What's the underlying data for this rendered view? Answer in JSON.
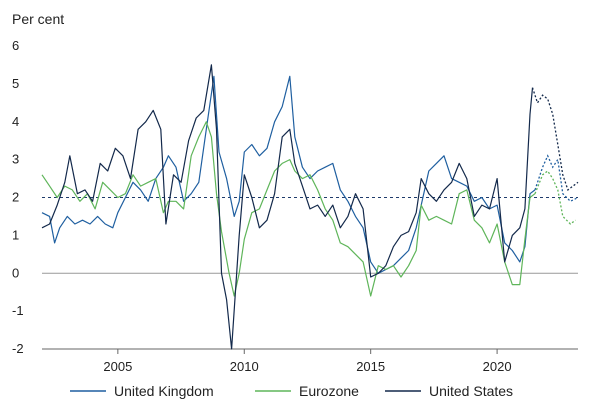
{
  "chart_data": {
    "type": "line",
    "unit_label": "Per cent",
    "xlim": [
      2002.0,
      2023.2
    ],
    "ylim": [
      -2,
      6
    ],
    "x_ticks": [
      2005,
      2010,
      2015,
      2020
    ],
    "y_ticks": [
      -2,
      -1,
      0,
      1,
      2,
      3,
      4,
      5,
      6
    ],
    "reference_line": {
      "y": 2,
      "style": "dashed",
      "color": "#1f3b6b"
    },
    "zero_line": {
      "y": 0,
      "color": "#999999"
    },
    "legend_position": "bottom",
    "series": [
      {
        "name": "United Kingdom",
        "color": "#1f5fa0",
        "points": [
          [
            2002.0,
            1.6
          ],
          [
            2002.3,
            1.5
          ],
          [
            2002.5,
            0.8
          ],
          [
            2002.7,
            1.2
          ],
          [
            2003.0,
            1.5
          ],
          [
            2003.3,
            1.3
          ],
          [
            2003.6,
            1.4
          ],
          [
            2003.9,
            1.3
          ],
          [
            2004.2,
            1.5
          ],
          [
            2004.5,
            1.3
          ],
          [
            2004.8,
            1.2
          ],
          [
            2005.0,
            1.6
          ],
          [
            2005.3,
            2.0
          ],
          [
            2005.6,
            2.4
          ],
          [
            2005.9,
            2.2
          ],
          [
            2006.2,
            1.9
          ],
          [
            2006.5,
            2.5
          ],
          [
            2006.8,
            2.8
          ],
          [
            2007.0,
            3.1
          ],
          [
            2007.3,
            2.8
          ],
          [
            2007.6,
            1.9
          ],
          [
            2007.9,
            2.1
          ],
          [
            2008.2,
            2.4
          ],
          [
            2008.5,
            3.8
          ],
          [
            2008.8,
            5.2
          ],
          [
            2009.0,
            3.2
          ],
          [
            2009.3,
            2.5
          ],
          [
            2009.6,
            1.5
          ],
          [
            2009.8,
            1.9
          ],
          [
            2010.0,
            3.2
          ],
          [
            2010.3,
            3.4
          ],
          [
            2010.6,
            3.1
          ],
          [
            2010.9,
            3.3
          ],
          [
            2011.2,
            4.0
          ],
          [
            2011.5,
            4.4
          ],
          [
            2011.8,
            5.2
          ],
          [
            2012.0,
            3.6
          ],
          [
            2012.3,
            2.8
          ],
          [
            2012.6,
            2.5
          ],
          [
            2012.9,
            2.7
          ],
          [
            2013.2,
            2.8
          ],
          [
            2013.5,
            2.9
          ],
          [
            2013.8,
            2.2
          ],
          [
            2014.1,
            1.9
          ],
          [
            2014.4,
            1.5
          ],
          [
            2014.7,
            1.2
          ],
          [
            2015.0,
            0.3
          ],
          [
            2015.3,
            0.0
          ],
          [
            2015.6,
            0.1
          ],
          [
            2015.9,
            0.2
          ],
          [
            2016.2,
            0.4
          ],
          [
            2016.5,
            0.6
          ],
          [
            2016.8,
            1.2
          ],
          [
            2017.0,
            1.8
          ],
          [
            2017.3,
            2.7
          ],
          [
            2017.6,
            2.9
          ],
          [
            2017.9,
            3.1
          ],
          [
            2018.2,
            2.5
          ],
          [
            2018.5,
            2.4
          ],
          [
            2018.8,
            2.3
          ],
          [
            2019.1,
            1.9
          ],
          [
            2019.4,
            2.0
          ],
          [
            2019.7,
            1.7
          ],
          [
            2020.0,
            1.8
          ],
          [
            2020.3,
            0.8
          ],
          [
            2020.6,
            0.6
          ],
          [
            2020.9,
            0.3
          ],
          [
            2021.1,
            0.7
          ],
          [
            2021.3,
            2.1
          ],
          [
            2021.5,
            2.2
          ]
        ]
      },
      {
        "name": "Eurozone",
        "color": "#5fb55a",
        "points": [
          [
            2002.0,
            2.6
          ],
          [
            2002.3,
            2.3
          ],
          [
            2002.6,
            2.0
          ],
          [
            2002.9,
            2.3
          ],
          [
            2003.2,
            2.2
          ],
          [
            2003.5,
            1.9
          ],
          [
            2003.8,
            2.1
          ],
          [
            2004.1,
            1.7
          ],
          [
            2004.4,
            2.4
          ],
          [
            2004.7,
            2.2
          ],
          [
            2005.0,
            2.0
          ],
          [
            2005.3,
            2.1
          ],
          [
            2005.6,
            2.6
          ],
          [
            2005.9,
            2.3
          ],
          [
            2006.2,
            2.4
          ],
          [
            2006.5,
            2.5
          ],
          [
            2006.8,
            1.6
          ],
          [
            2007.0,
            1.9
          ],
          [
            2007.3,
            1.9
          ],
          [
            2007.6,
            1.7
          ],
          [
            2007.9,
            3.1
          ],
          [
            2008.2,
            3.6
          ],
          [
            2008.5,
            4.0
          ],
          [
            2008.7,
            3.6
          ],
          [
            2008.9,
            2.1
          ],
          [
            2009.1,
            1.1
          ],
          [
            2009.4,
            0.0
          ],
          [
            2009.6,
            -0.6
          ],
          [
            2009.8,
            0.0
          ],
          [
            2010.0,
            0.9
          ],
          [
            2010.3,
            1.6
          ],
          [
            2010.6,
            1.7
          ],
          [
            2010.9,
            2.2
          ],
          [
            2011.2,
            2.7
          ],
          [
            2011.5,
            2.9
          ],
          [
            2011.8,
            3.0
          ],
          [
            2012.0,
            2.7
          ],
          [
            2012.3,
            2.5
          ],
          [
            2012.6,
            2.6
          ],
          [
            2012.9,
            2.2
          ],
          [
            2013.2,
            1.7
          ],
          [
            2013.5,
            1.4
          ],
          [
            2013.8,
            0.8
          ],
          [
            2014.1,
            0.7
          ],
          [
            2014.4,
            0.5
          ],
          [
            2014.7,
            0.3
          ],
          [
            2015.0,
            -0.6
          ],
          [
            2015.3,
            0.2
          ],
          [
            2015.6,
            0.1
          ],
          [
            2015.9,
            0.2
          ],
          [
            2016.2,
            -0.1
          ],
          [
            2016.5,
            0.2
          ],
          [
            2016.8,
            0.6
          ],
          [
            2017.0,
            1.8
          ],
          [
            2017.3,
            1.4
          ],
          [
            2017.6,
            1.5
          ],
          [
            2017.9,
            1.4
          ],
          [
            2018.2,
            1.3
          ],
          [
            2018.5,
            2.1
          ],
          [
            2018.8,
            2.2
          ],
          [
            2019.1,
            1.4
          ],
          [
            2019.4,
            1.2
          ],
          [
            2019.7,
            0.8
          ],
          [
            2020.0,
            1.3
          ],
          [
            2020.3,
            0.3
          ],
          [
            2020.6,
            -0.3
          ],
          [
            2020.9,
            -0.3
          ],
          [
            2021.1,
            0.9
          ],
          [
            2021.3,
            2.0
          ],
          [
            2021.5,
            2.1
          ]
        ]
      },
      {
        "name": "United States",
        "color": "#13294b",
        "points": [
          [
            2002.0,
            1.2
          ],
          [
            2002.3,
            1.3
          ],
          [
            2002.6,
            1.8
          ],
          [
            2002.9,
            2.4
          ],
          [
            2003.1,
            3.1
          ],
          [
            2003.4,
            2.1
          ],
          [
            2003.7,
            2.2
          ],
          [
            2004.0,
            1.9
          ],
          [
            2004.3,
            2.9
          ],
          [
            2004.6,
            2.7
          ],
          [
            2004.9,
            3.3
          ],
          [
            2005.2,
            3.1
          ],
          [
            2005.5,
            2.5
          ],
          [
            2005.8,
            3.8
          ],
          [
            2006.1,
            4.0
          ],
          [
            2006.4,
            4.3
          ],
          [
            2006.7,
            3.8
          ],
          [
            2006.9,
            1.3
          ],
          [
            2007.2,
            2.6
          ],
          [
            2007.5,
            2.4
          ],
          [
            2007.8,
            3.5
          ],
          [
            2008.1,
            4.1
          ],
          [
            2008.4,
            4.3
          ],
          [
            2008.7,
            5.5
          ],
          [
            2008.9,
            3.8
          ],
          [
            2009.1,
            0.0
          ],
          [
            2009.3,
            -0.7
          ],
          [
            2009.5,
            -2.0
          ],
          [
            2009.8,
            1.0
          ],
          [
            2010.0,
            2.6
          ],
          [
            2010.3,
            2.0
          ],
          [
            2010.6,
            1.2
          ],
          [
            2010.9,
            1.4
          ],
          [
            2011.2,
            2.1
          ],
          [
            2011.5,
            3.6
          ],
          [
            2011.8,
            3.8
          ],
          [
            2012.0,
            2.9
          ],
          [
            2012.3,
            2.3
          ],
          [
            2012.6,
            1.7
          ],
          [
            2012.9,
            1.8
          ],
          [
            2013.2,
            1.5
          ],
          [
            2013.5,
            1.8
          ],
          [
            2013.8,
            1.2
          ],
          [
            2014.1,
            1.5
          ],
          [
            2014.4,
            2.1
          ],
          [
            2014.7,
            1.7
          ],
          [
            2015.0,
            -0.1
          ],
          [
            2015.3,
            0.0
          ],
          [
            2015.6,
            0.2
          ],
          [
            2015.9,
            0.7
          ],
          [
            2016.2,
            1.0
          ],
          [
            2016.5,
            1.1
          ],
          [
            2016.8,
            1.6
          ],
          [
            2017.0,
            2.5
          ],
          [
            2017.3,
            2.1
          ],
          [
            2017.6,
            1.9
          ],
          [
            2017.9,
            2.2
          ],
          [
            2018.2,
            2.4
          ],
          [
            2018.5,
            2.9
          ],
          [
            2018.8,
            2.5
          ],
          [
            2019.1,
            1.5
          ],
          [
            2019.4,
            1.8
          ],
          [
            2019.7,
            1.7
          ],
          [
            2020.0,
            2.5
          ],
          [
            2020.3,
            0.3
          ],
          [
            2020.6,
            1.0
          ],
          [
            2020.9,
            1.2
          ],
          [
            2021.1,
            1.7
          ],
          [
            2021.3,
            4.2
          ],
          [
            2021.4,
            4.9
          ]
        ]
      }
    ],
    "projections": [
      {
        "series": "United Kingdom",
        "color": "#1f5fa0",
        "style": "dotted",
        "points": [
          [
            2021.5,
            2.2
          ],
          [
            2021.8,
            2.8
          ],
          [
            2022.0,
            3.1
          ],
          [
            2022.2,
            2.8
          ],
          [
            2022.4,
            3.0
          ],
          [
            2022.6,
            2.1
          ],
          [
            2022.9,
            1.9
          ],
          [
            2023.2,
            2.0
          ]
        ]
      },
      {
        "series": "Eurozone",
        "color": "#5fb55a",
        "style": "dotted",
        "points": [
          [
            2021.5,
            2.1
          ],
          [
            2021.8,
            2.6
          ],
          [
            2022.0,
            2.7
          ],
          [
            2022.2,
            2.5
          ],
          [
            2022.4,
            2.2
          ],
          [
            2022.6,
            1.5
          ],
          [
            2022.9,
            1.3
          ],
          [
            2023.1,
            1.4
          ]
        ]
      },
      {
        "series": "United States",
        "color": "#13294b",
        "style": "dotted",
        "points": [
          [
            2021.4,
            4.9
          ],
          [
            2021.6,
            4.5
          ],
          [
            2021.8,
            4.7
          ],
          [
            2022.0,
            4.6
          ],
          [
            2022.2,
            4.2
          ],
          [
            2022.4,
            3.4
          ],
          [
            2022.6,
            2.6
          ],
          [
            2022.8,
            2.2
          ],
          [
            2023.0,
            2.3
          ],
          [
            2023.2,
            2.4
          ]
        ]
      }
    ]
  }
}
